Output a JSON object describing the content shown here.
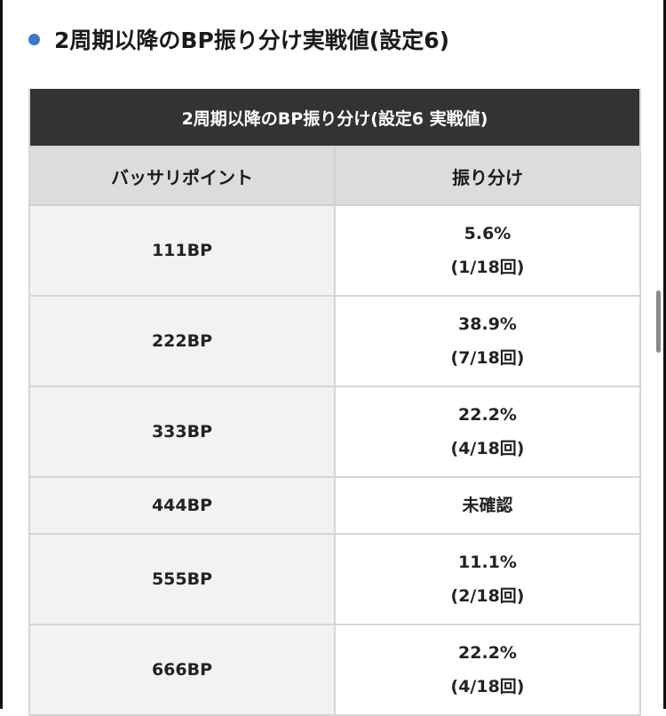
{
  "heading": {
    "title": "2周期以降のBP振り分け実戦値(設定6)"
  },
  "table": {
    "caption": "2周期以降のBP振り分け(設定6 実戦値)",
    "headers": [
      "バッサリポイント",
      "振り分け"
    ],
    "rows": [
      {
        "bp": "111BP",
        "pct": "5.6%",
        "count": "(1/18回)"
      },
      {
        "bp": "222BP",
        "pct": "38.9%",
        "count": "(7/18回)"
      },
      {
        "bp": "333BP",
        "pct": "22.2%",
        "count": "(4/18回)"
      },
      {
        "bp": "444BP",
        "pct": "未確認",
        "count": ""
      },
      {
        "bp": "555BP",
        "pct": "11.1%",
        "count": "(2/18回)"
      },
      {
        "bp": "666BP",
        "pct": "22.2%",
        "count": "(4/18回)"
      }
    ]
  },
  "colors": {
    "bullet": "#3b78c8",
    "caption_bg": "#333333",
    "header_bg": "#dcdcdc",
    "bp_cell_bg": "#f2f2f2"
  }
}
